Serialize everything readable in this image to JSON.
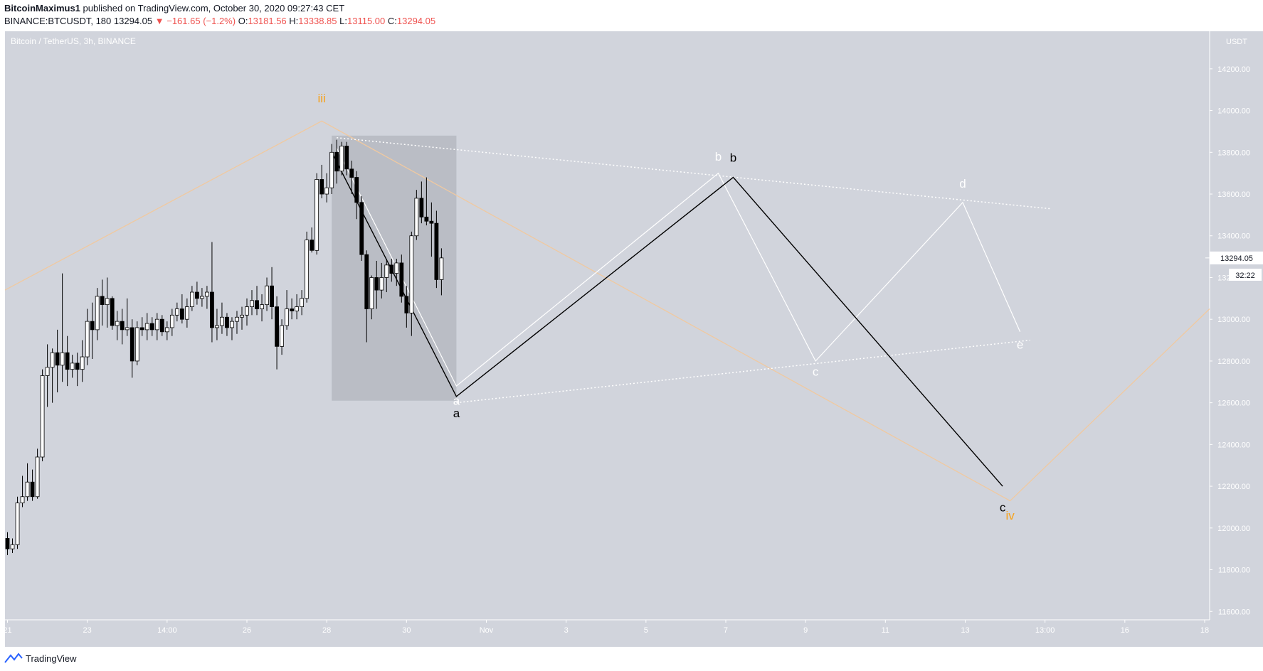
{
  "header": {
    "author": "BitcoinMaximus1",
    "published": "published on TradingView.com, October 30, 2020 09:27:43 CET",
    "symbol": "BINANCE:BTCUSDT, 180",
    "last": "13294.05",
    "change": "▼ −161.65 (−1.2%)",
    "o_label": "O:",
    "o_value": "13181.56",
    "h_label": "H:",
    "h_value": "13338.85",
    "l_label": "L:",
    "l_value": "13115.00",
    "c_label": "C:",
    "c_value": "13294.05"
  },
  "footer": {
    "brand": "TradingView"
  },
  "colors": {
    "pane": "#d1d4dc",
    "bull_body": "#ffffff",
    "bear_body": "#000000",
    "wick": "#000000",
    "orange": "#f7a21b",
    "orange_line": "#f0c9a0",
    "white_wave": "#ffffff",
    "black_wave": "#000000",
    "last_price": "#ffffff",
    "selection_box": "#b2b5be"
  },
  "chart_data": {
    "type": "candlestick",
    "title": "Bitcoin / TetherUS, 3h, BINANCE",
    "price_unit": "USDT",
    "ylim": [
      11560,
      14380
    ],
    "y_ticks": [
      11600,
      11800,
      12000,
      12200,
      12400,
      12600,
      12800,
      13000,
      13200,
      13400,
      13600,
      13800,
      14000,
      14200
    ],
    "x_ticks": [
      "21",
      "23",
      "14:00",
      "26",
      "28",
      "30",
      "Nov",
      "3",
      "5",
      "7",
      "9",
      "11",
      "13",
      "13:00",
      "16",
      "18"
    ],
    "x_tick_index": [
      0,
      16,
      32,
      48,
      64,
      80,
      96,
      112,
      128,
      144,
      160,
      176,
      192,
      208,
      224,
      240
    ],
    "x_range_index": [
      -0.5,
      241
    ],
    "last_price": "13294.05",
    "countdown": "32:22",
    "candles": [
      {
        "o": 11950,
        "h": 11980,
        "l": 11870,
        "c": 11900
      },
      {
        "o": 11900,
        "h": 11950,
        "l": 11880,
        "c": 11920
      },
      {
        "o": 11920,
        "h": 12150,
        "l": 11900,
        "c": 12120
      },
      {
        "o": 12120,
        "h": 12250,
        "l": 12100,
        "c": 12150
      },
      {
        "o": 12150,
        "h": 12310,
        "l": 12130,
        "c": 12220
      },
      {
        "o": 12220,
        "h": 12280,
        "l": 12130,
        "c": 12150
      },
      {
        "o": 12150,
        "h": 12380,
        "l": 12140,
        "c": 12340
      },
      {
        "o": 12340,
        "h": 12760,
        "l": 12320,
        "c": 12730
      },
      {
        "o": 12730,
        "h": 12880,
        "l": 12580,
        "c": 12770
      },
      {
        "o": 12770,
        "h": 12860,
        "l": 12600,
        "c": 12840
      },
      {
        "o": 12840,
        "h": 12950,
        "l": 12650,
        "c": 12780
      },
      {
        "o": 12780,
        "h": 13220,
        "l": 12700,
        "c": 12840
      },
      {
        "o": 12840,
        "h": 12920,
        "l": 12680,
        "c": 12760
      },
      {
        "o": 12760,
        "h": 12830,
        "l": 12720,
        "c": 12790
      },
      {
        "o": 12790,
        "h": 12840,
        "l": 12680,
        "c": 12760
      },
      {
        "o": 12760,
        "h": 12900,
        "l": 12700,
        "c": 12820
      },
      {
        "o": 12820,
        "h": 13050,
        "l": 12780,
        "c": 12990
      },
      {
        "o": 12990,
        "h": 13080,
        "l": 12810,
        "c": 12950
      },
      {
        "o": 12950,
        "h": 13150,
        "l": 12900,
        "c": 13110
      },
      {
        "o": 13110,
        "h": 13190,
        "l": 12970,
        "c": 13070
      },
      {
        "o": 13070,
        "h": 13200,
        "l": 12960,
        "c": 13100
      },
      {
        "o": 13100,
        "h": 13110,
        "l": 12950,
        "c": 12970
      },
      {
        "o": 12970,
        "h": 13040,
        "l": 12900,
        "c": 12990
      },
      {
        "o": 12990,
        "h": 13050,
        "l": 12880,
        "c": 12950
      },
      {
        "o": 12950,
        "h": 13100,
        "l": 12920,
        "c": 12960
      },
      {
        "o": 12960,
        "h": 13000,
        "l": 12720,
        "c": 12800
      },
      {
        "o": 12800,
        "h": 12990,
        "l": 12780,
        "c": 12960
      },
      {
        "o": 12960,
        "h": 13010,
        "l": 12920,
        "c": 12950
      },
      {
        "o": 12950,
        "h": 13030,
        "l": 12900,
        "c": 12980
      },
      {
        "o": 12980,
        "h": 13010,
        "l": 12920,
        "c": 12950
      },
      {
        "o": 12950,
        "h": 13030,
        "l": 12900,
        "c": 13000
      },
      {
        "o": 13000,
        "h": 13020,
        "l": 12920,
        "c": 12940
      },
      {
        "o": 12940,
        "h": 12990,
        "l": 12900,
        "c": 12960
      },
      {
        "o": 12960,
        "h": 13050,
        "l": 12920,
        "c": 13020
      },
      {
        "o": 13020,
        "h": 13080,
        "l": 12990,
        "c": 13050
      },
      {
        "o": 13050,
        "h": 13120,
        "l": 12980,
        "c": 13000
      },
      {
        "o": 13000,
        "h": 13100,
        "l": 12960,
        "c": 13060
      },
      {
        "o": 13060,
        "h": 13160,
        "l": 13040,
        "c": 13130
      },
      {
        "o": 13130,
        "h": 13180,
        "l": 13070,
        "c": 13100
      },
      {
        "o": 13100,
        "h": 13150,
        "l": 13060,
        "c": 13110
      },
      {
        "o": 13110,
        "h": 13160,
        "l": 13050,
        "c": 13130
      },
      {
        "o": 13130,
        "h": 13370,
        "l": 12890,
        "c": 12960
      },
      {
        "o": 12960,
        "h": 13050,
        "l": 12900,
        "c": 12970
      },
      {
        "o": 12970,
        "h": 13080,
        "l": 12930,
        "c": 13010
      },
      {
        "o": 13010,
        "h": 13030,
        "l": 12920,
        "c": 12960
      },
      {
        "o": 12960,
        "h": 13010,
        "l": 12900,
        "c": 12990
      },
      {
        "o": 12990,
        "h": 13040,
        "l": 12930,
        "c": 13010
      },
      {
        "o": 13010,
        "h": 13060,
        "l": 12950,
        "c": 13020
      },
      {
        "o": 13020,
        "h": 13100,
        "l": 12970,
        "c": 13060
      },
      {
        "o": 13060,
        "h": 13140,
        "l": 13020,
        "c": 13090
      },
      {
        "o": 13090,
        "h": 13160,
        "l": 13020,
        "c": 13050
      },
      {
        "o": 13050,
        "h": 13120,
        "l": 12990,
        "c": 13070
      },
      {
        "o": 13070,
        "h": 13200,
        "l": 13040,
        "c": 13160
      },
      {
        "o": 13160,
        "h": 13250,
        "l": 13000,
        "c": 13060
      },
      {
        "o": 13060,
        "h": 13110,
        "l": 12760,
        "c": 12870
      },
      {
        "o": 12870,
        "h": 13000,
        "l": 12830,
        "c": 12970
      },
      {
        "o": 12970,
        "h": 13140,
        "l": 12950,
        "c": 13050
      },
      {
        "o": 13050,
        "h": 13100,
        "l": 13000,
        "c": 13040
      },
      {
        "o": 13040,
        "h": 13120,
        "l": 13000,
        "c": 13060
      },
      {
        "o": 13060,
        "h": 13140,
        "l": 13020,
        "c": 13100
      },
      {
        "o": 13100,
        "h": 13420,
        "l": 13080,
        "c": 13380
      },
      {
        "o": 13380,
        "h": 13440,
        "l": 13320,
        "c": 13330
      },
      {
        "o": 13330,
        "h": 13700,
        "l": 13310,
        "c": 13670
      },
      {
        "o": 13670,
        "h": 13740,
        "l": 13580,
        "c": 13600
      },
      {
        "o": 13600,
        "h": 13700,
        "l": 13560,
        "c": 13630
      },
      {
        "o": 13630,
        "h": 13840,
        "l": 13600,
        "c": 13800
      },
      {
        "o": 13800,
        "h": 13860,
        "l": 13650,
        "c": 13710
      },
      {
        "o": 13710,
        "h": 13850,
        "l": 13690,
        "c": 13830
      },
      {
        "o": 13830,
        "h": 13850,
        "l": 13690,
        "c": 13720
      },
      {
        "o": 13720,
        "h": 13760,
        "l": 13600,
        "c": 13680
      },
      {
        "o": 13680,
        "h": 13710,
        "l": 13480,
        "c": 13560
      },
      {
        "o": 13560,
        "h": 13590,
        "l": 13280,
        "c": 13310
      },
      {
        "o": 13310,
        "h": 13330,
        "l": 12890,
        "c": 13050
      },
      {
        "o": 13050,
        "h": 13210,
        "l": 13000,
        "c": 13200
      },
      {
        "o": 13200,
        "h": 13280,
        "l": 13050,
        "c": 13140
      },
      {
        "o": 13140,
        "h": 13270,
        "l": 13100,
        "c": 13200
      },
      {
        "o": 13200,
        "h": 13290,
        "l": 13130,
        "c": 13260
      },
      {
        "o": 13260,
        "h": 13290,
        "l": 13180,
        "c": 13220
      },
      {
        "o": 13220,
        "h": 13290,
        "l": 13160,
        "c": 13270
      },
      {
        "o": 13270,
        "h": 13310,
        "l": 13080,
        "c": 13110
      },
      {
        "o": 13110,
        "h": 13160,
        "l": 12960,
        "c": 13030
      },
      {
        "o": 13030,
        "h": 13420,
        "l": 12920,
        "c": 13400
      },
      {
        "o": 13400,
        "h": 13620,
        "l": 13380,
        "c": 13580
      },
      {
        "o": 13580,
        "h": 13660,
        "l": 13460,
        "c": 13490
      },
      {
        "o": 13490,
        "h": 13680,
        "l": 13450,
        "c": 13470
      },
      {
        "o": 13470,
        "h": 13560,
        "l": 13300,
        "c": 13460
      },
      {
        "o": 13460,
        "h": 13520,
        "l": 13150,
        "c": 13190
      },
      {
        "o": 13190,
        "h": 13340,
        "l": 13115,
        "c": 13294
      }
    ],
    "annotations": {
      "wave_labels": [
        {
          "text": "iii",
          "color": "orange",
          "idx": 63,
          "price": 14040
        },
        {
          "text": "iv",
          "color": "orange",
          "idx": 201,
          "price": 12040
        },
        {
          "text": "a",
          "color": "white",
          "idx": 90,
          "price": 12590
        },
        {
          "text": "a",
          "color": "black",
          "idx": 90,
          "price": 12530
        },
        {
          "text": "b",
          "color": "white",
          "idx": 142.5,
          "price": 13760
        },
        {
          "text": "b",
          "color": "black",
          "idx": 145.5,
          "price": 13755
        },
        {
          "text": "c",
          "color": "white",
          "idx": 162,
          "price": 12730
        },
        {
          "text": "c",
          "color": "black",
          "idx": 199.5,
          "price": 12080
        },
        {
          "text": "d",
          "color": "white",
          "idx": 191.5,
          "price": 13630
        },
        {
          "text": "e",
          "color": "white",
          "idx": 203,
          "price": 12860
        }
      ]
    }
  }
}
